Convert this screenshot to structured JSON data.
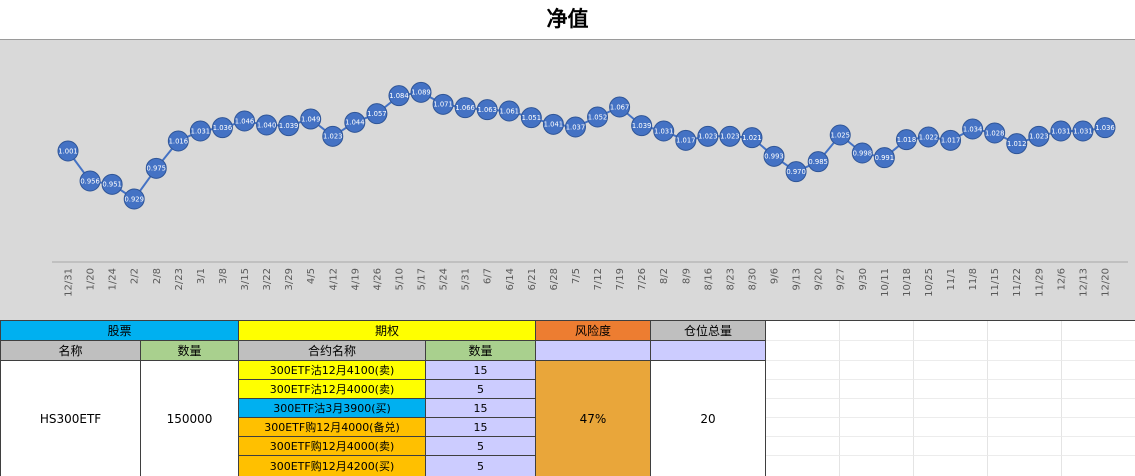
{
  "colors": {
    "stock_header": "#00B0F0",
    "option_header": "#FFFF00",
    "risk_header": "#ED7D31",
    "gray_header": "#BFBFBF",
    "qty_header": "#A9D08E",
    "lavender": "#CCCCFF",
    "risk_cell": "#E9A63A",
    "white": "#FFFFFF"
  },
  "chart_data": {
    "type": "line",
    "title": "净值",
    "xlabel": "",
    "ylabel": "",
    "grid": false,
    "legend": false,
    "marker_labels": true,
    "ylim": [
      0.92,
      1.1
    ],
    "categories": [
      "12/31",
      "1/20",
      "1/24",
      "2/2",
      "2/8",
      "2/23",
      "3/1",
      "3/8",
      "3/15",
      "3/22",
      "3/29",
      "4/5",
      "4/12",
      "4/19",
      "4/26",
      "5/10",
      "5/17",
      "5/24",
      "5/31",
      "6/7",
      "6/14",
      "6/21",
      "6/28",
      "7/5",
      "7/12",
      "7/19",
      "7/26",
      "8/2",
      "8/9",
      "8/16",
      "8/23",
      "8/30",
      "9/6",
      "9/13",
      "9/20",
      "9/27",
      "9/30",
      "10/11",
      "10/18",
      "10/25",
      "11/1",
      "11/8",
      "11/15",
      "11/22",
      "11/29",
      "12/6",
      "12/13",
      "12/20"
    ],
    "values": [
      1.001,
      0.956,
      0.951,
      0.929,
      0.975,
      1.016,
      1.031,
      1.036,
      1.046,
      1.04,
      1.039,
      1.049,
      1.023,
      1.044,
      1.057,
      1.084,
      1.089,
      1.071,
      1.066,
      1.063,
      1.061,
      1.051,
      1.041,
      1.037,
      1.052,
      1.067,
      1.039,
      1.031,
      1.017,
      1.023,
      1.023,
      1.021,
      0.993,
      0.97,
      0.985,
      1.025,
      0.998,
      0.991,
      1.018,
      1.022,
      1.017,
      1.034,
      1.028,
      1.012,
      1.023,
      1.031,
      1.031,
      1.036
    ],
    "colors": {
      "line": "#4472C4",
      "marker": "#4472C4",
      "marker_stroke": "#2F5597",
      "label_text": "#FFFFFF",
      "plot_bg": "#D9D9D9",
      "axis_line": "#A6A6A6",
      "tick_text": "#595959"
    }
  },
  "table": {
    "headers": {
      "stock": "股票",
      "option": "期权",
      "risk": "风险度",
      "position_total": "仓位总量"
    },
    "subheaders": {
      "name": "名称",
      "stock_qty": "数量",
      "contract_name": "合约名称",
      "option_qty": "数量"
    },
    "stock": {
      "name": "HS300ETF",
      "quantity": "150000"
    },
    "contracts": [
      {
        "name": "300ETF沽12月4100(卖)",
        "qty": "15",
        "color": "#FFFF00"
      },
      {
        "name": "300ETF沽12月4000(卖)",
        "qty": "5",
        "color": "#FFFF00"
      },
      {
        "name": "300ETF沽3月3900(买)",
        "qty": "15",
        "color": "#00B0F0"
      },
      {
        "name": "300ETF购12月4000(备兑)",
        "qty": "15",
        "color": "#FFC000"
      },
      {
        "name": "300ETF购12月4000(卖)",
        "qty": "5",
        "color": "#FFC000"
      },
      {
        "name": "300ETF购12月4200(买)",
        "qty": "5",
        "color": "#FFC000"
      }
    ],
    "risk_value": "47%",
    "position_value": "20"
  }
}
